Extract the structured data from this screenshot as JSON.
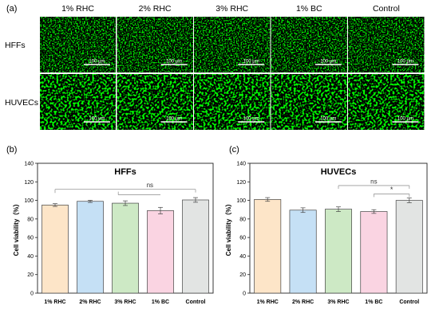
{
  "panels": {
    "a": {
      "label": "(a)",
      "columns": [
        "1% RHC",
        "2% RHC",
        "3% RHC",
        "1% BC",
        "Control"
      ],
      "rows": [
        "HFFs",
        "HUVECs"
      ],
      "scale_bar": "100 µm"
    },
    "b": {
      "label": "(b)"
    },
    "c": {
      "label": "(c)"
    }
  },
  "chart_data": [
    {
      "type": "bar",
      "title": "HFFs",
      "categories": [
        "1% RHC",
        "2% RHC",
        "3% RHC",
        "1% BC",
        "Control"
      ],
      "values": [
        95,
        99,
        97,
        89,
        100.5
      ],
      "errors": [
        1.5,
        1.2,
        2.5,
        3.5,
        2.5
      ],
      "colors": [
        "#fde5c8",
        "#c5e0f5",
        "#cde9c5",
        "#fad4e2",
        "#e2e4e3"
      ],
      "ylabel": "Cell viability（%）",
      "ylim": [
        0,
        140
      ],
      "yticks": [
        0,
        20,
        40,
        60,
        80,
        100,
        120,
        140
      ],
      "grid": false,
      "annotations": [
        {
          "text": "ns",
          "from": "1% RHC",
          "to": "Control",
          "y": 112,
          "bracket_to": "Control"
        }
      ]
    },
    {
      "type": "bar",
      "title": "HUVECs",
      "categories": [
        "1% RHC",
        "2% RHC",
        "3% RHC",
        "1% BC",
        "Control"
      ],
      "values": [
        101,
        89.5,
        90.5,
        88,
        100
      ],
      "errors": [
        2.0,
        2.5,
        2.5,
        2.0,
        2.5
      ],
      "colors": [
        "#fde5c8",
        "#c5e0f5",
        "#cde9c5",
        "#fad4e2",
        "#e2e4e3"
      ],
      "ylabel": "Cell viability（%）",
      "ylim": [
        0,
        140
      ],
      "yticks": [
        0,
        20,
        40,
        60,
        80,
        100,
        120,
        140
      ],
      "grid": false,
      "annotations": [
        {
          "text": "ns",
          "from": "3% RHC",
          "to": "Control",
          "y": 116
        },
        {
          "text": "*",
          "from": "1% BC",
          "to": "Control",
          "y": 107
        }
      ]
    }
  ]
}
